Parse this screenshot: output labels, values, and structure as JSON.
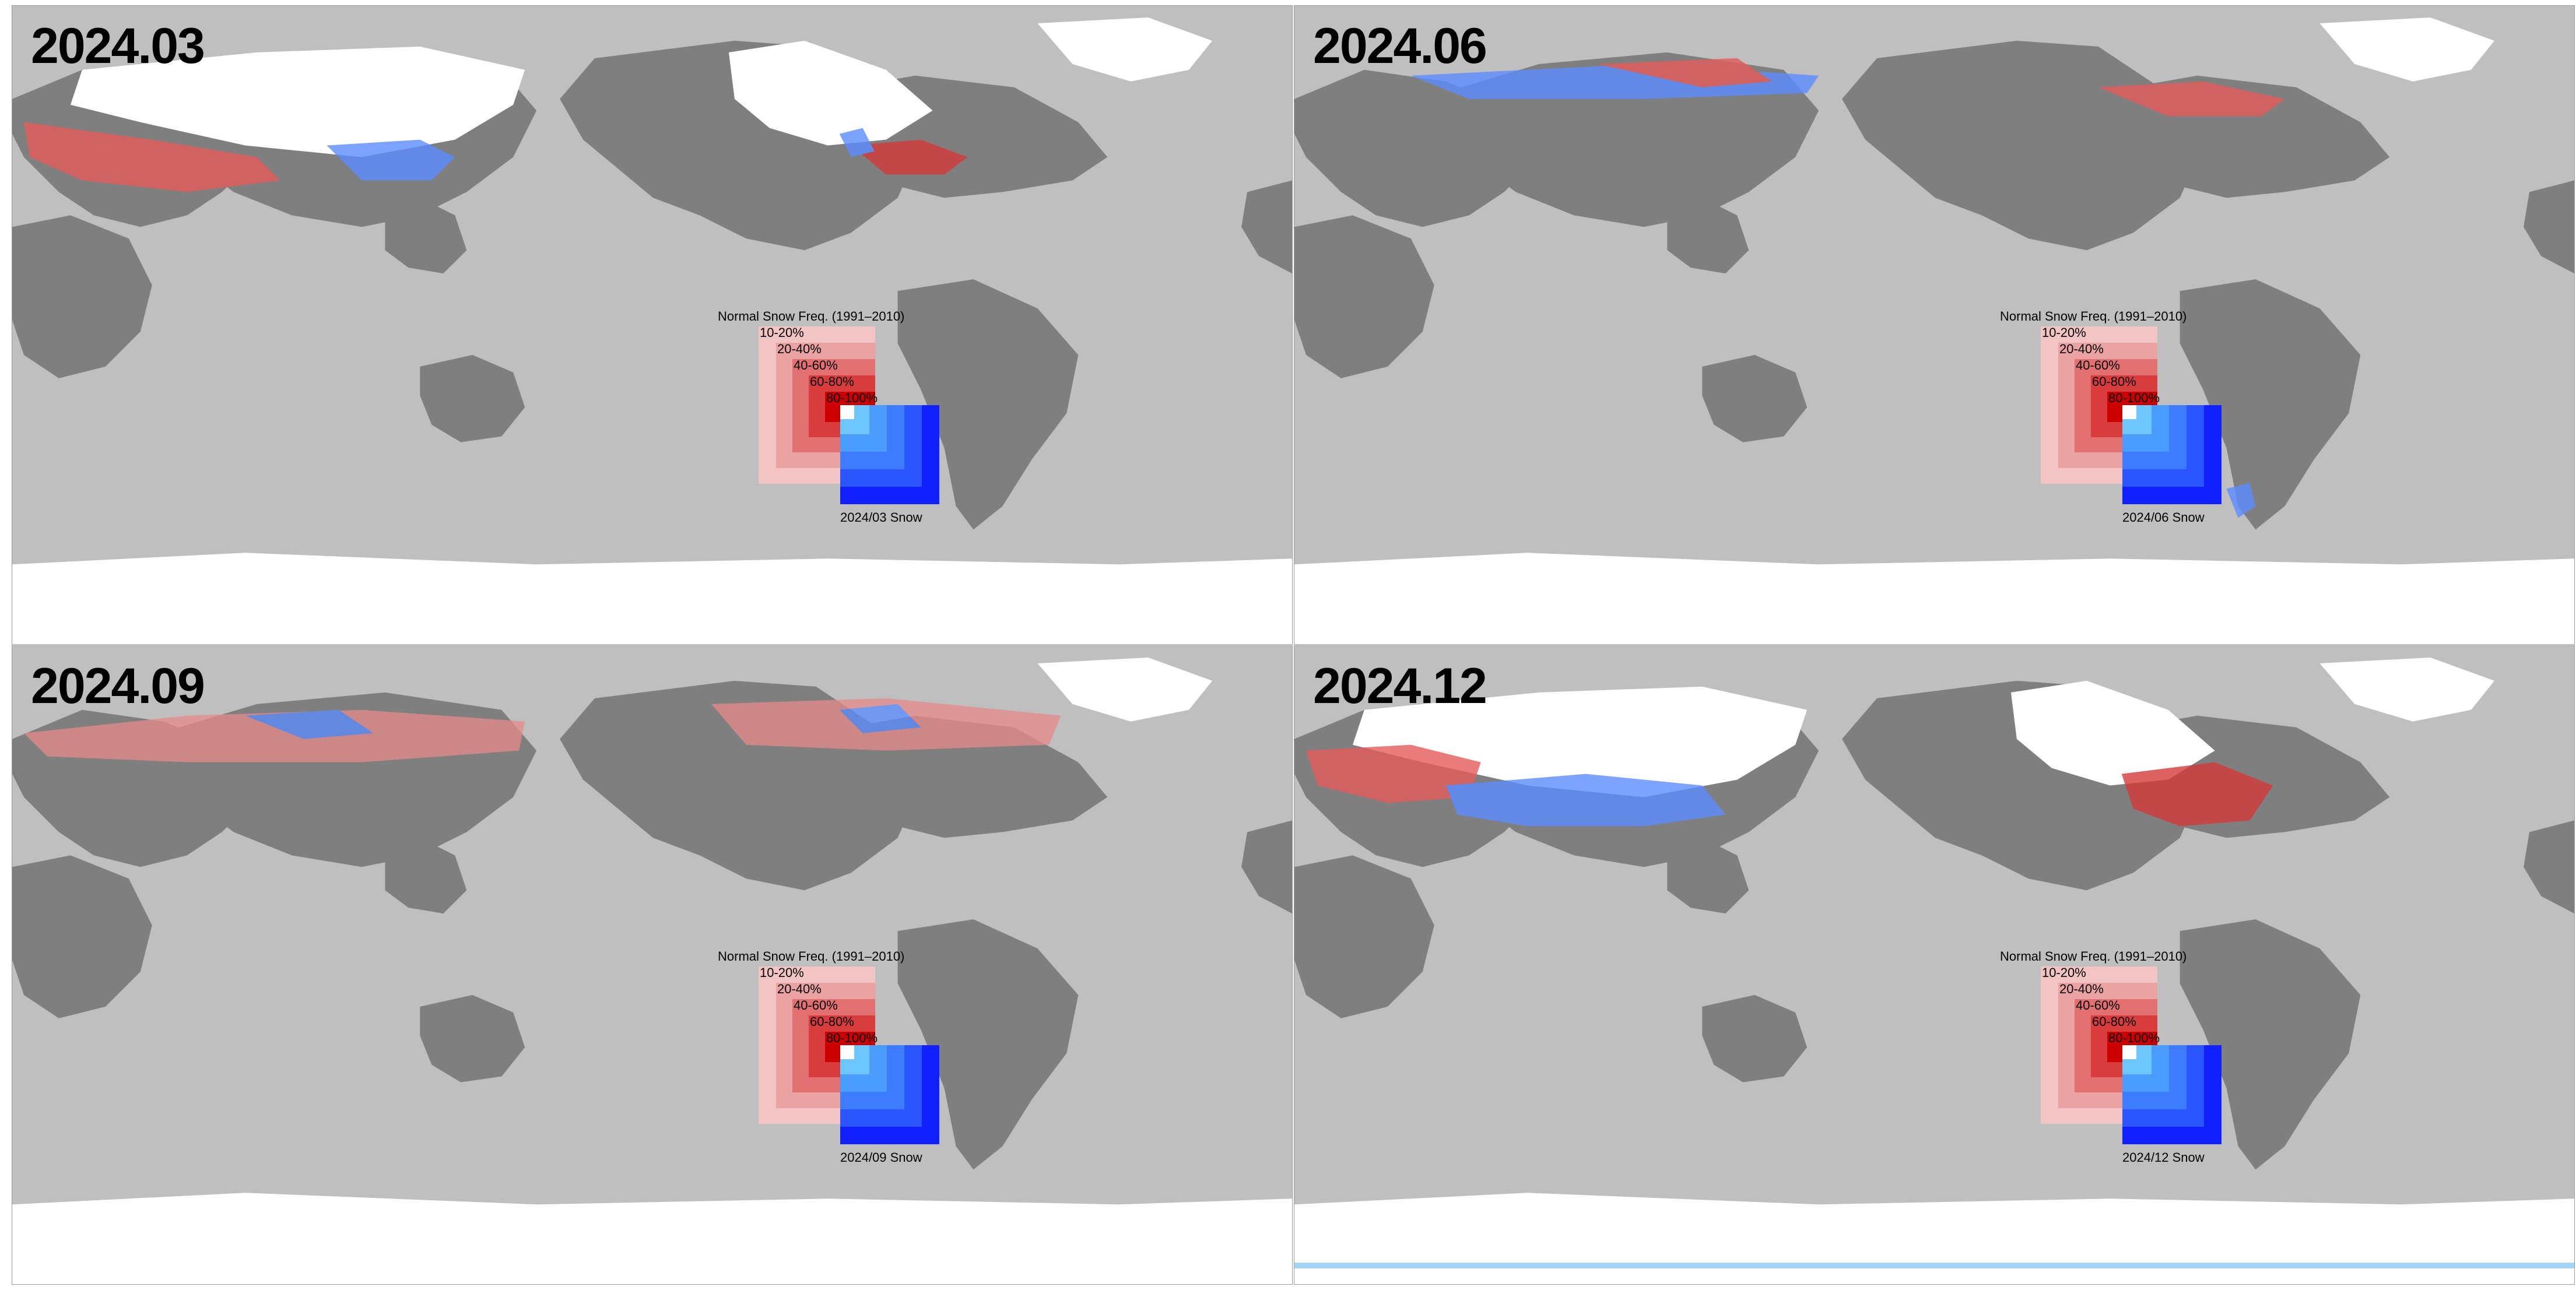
{
  "panels": [
    {
      "title": "2024.03",
      "snow_label": "2024/03 Snow"
    },
    {
      "title": "2024.06",
      "snow_label": "2024/06 Snow"
    },
    {
      "title": "2024.09",
      "snow_label": "2024/09 Snow"
    },
    {
      "title": "2024.12",
      "snow_label": "2024/12 Snow"
    }
  ],
  "legend": {
    "title": "Normal Snow Freq. (1991–2010)",
    "classes": [
      "10-20%",
      "20-40%",
      "40-60%",
      "60-80%",
      "80-100%"
    ],
    "normal_colors": [
      "#f2c4c4",
      "#eba2a2",
      "#e27070",
      "#d83c3c",
      "#cc0000"
    ],
    "snow_colors": [
      "#6ec6ff",
      "#4a9cff",
      "#3e7cff",
      "#2b55ff",
      "#1020ff"
    ]
  },
  "colors": {
    "ocean": "#bfbfbf",
    "land": "#7f7f7f",
    "snow": "#ffffff"
  }
}
